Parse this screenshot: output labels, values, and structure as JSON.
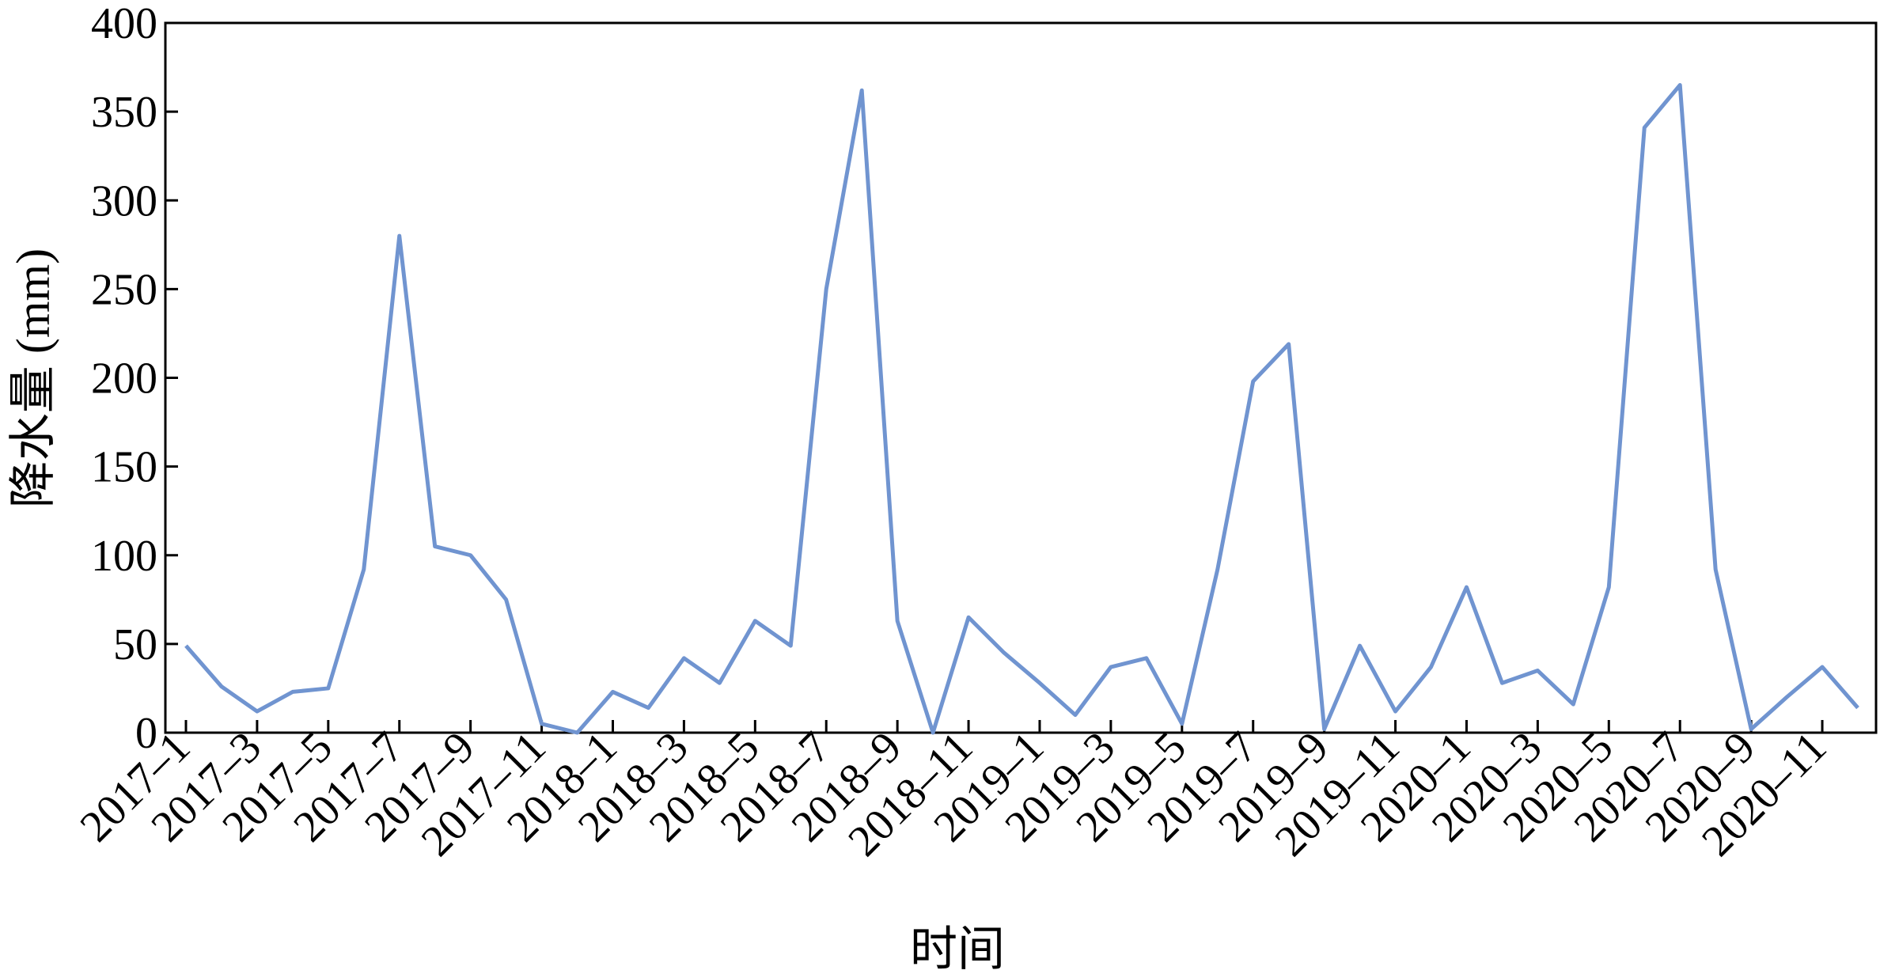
{
  "chart_data": {
    "type": "line",
    "x_label": "时间",
    "y_label": "降水量 (mm)",
    "categories": [
      "2017–1",
      null,
      "2017–3",
      null,
      "2017–5",
      null,
      "2017–7",
      null,
      "2017–9",
      null,
      "2017–11",
      null,
      "2018–1",
      null,
      "2018–3",
      null,
      "2018–5",
      null,
      "2018–7",
      null,
      "2018–9",
      null,
      "2018–11",
      null,
      "2019–1",
      null,
      "2019–3",
      null,
      "2019–5",
      null,
      "2019–7",
      null,
      "2019–9",
      null,
      "2019–11",
      null,
      "2020–1",
      null,
      "2020–3",
      null,
      "2020–5",
      null,
      "2020–7",
      null,
      "2020–9",
      null,
      "2020–11",
      null
    ],
    "series": [
      {
        "color": "#7094d0",
        "values": [
          49,
          26,
          12,
          23,
          25,
          92,
          280,
          105,
          100,
          75,
          5,
          0,
          23,
          14,
          42,
          28,
          63,
          49,
          250,
          362,
          63,
          0,
          65,
          45,
          28,
          10,
          37,
          42,
          5,
          92,
          198,
          219,
          2,
          49,
          12,
          37,
          82,
          28,
          35,
          16,
          82,
          341,
          365,
          92,
          2,
          20,
          37,
          14
        ]
      }
    ],
    "ylim": [
      0,
      400
    ],
    "yticks": [
      0,
      50,
      100,
      150,
      200,
      250,
      300,
      350,
      400
    ],
    "grid": false
  }
}
